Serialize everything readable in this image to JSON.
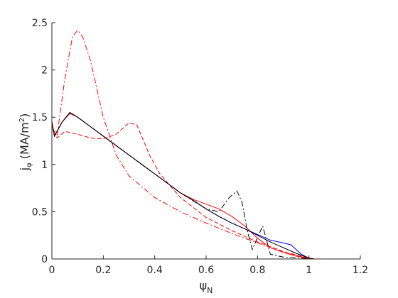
{
  "chart_data": {
    "type": "line",
    "x_label": [
      "ψ",
      "N"
    ],
    "y_label": [
      "j",
      "φ",
      " (MA/m",
      "2",
      ")"
    ],
    "xlim": [
      0,
      1.2
    ],
    "xticks": [
      0,
      0.2,
      0.4,
      0.6,
      0.8,
      1,
      1.2
    ],
    "ylim": [
      0,
      2.5
    ],
    "yticks": [
      0,
      0.5,
      1,
      1.5,
      2,
      2.5
    ],
    "grid": false,
    "series": [
      {
        "color": "#0000ff",
        "dash": "solid",
        "x": [
          0,
          0.01,
          0.04,
          0.07,
          0.1,
          0.15,
          0.2,
          0.25,
          0.3,
          0.35,
          0.4,
          0.45,
          0.5,
          0.55,
          0.6,
          0.65,
          0.7,
          0.75,
          0.8,
          0.85,
          0.9,
          0.93,
          0.97,
          1.0,
          1.02
        ],
        "values": [
          1.45,
          1.3,
          1.45,
          1.55,
          1.5,
          1.4,
          1.3,
          1.2,
          1.1,
          1.0,
          0.9,
          0.8,
          0.7,
          0.62,
          0.53,
          0.45,
          0.38,
          0.32,
          0.26,
          0.2,
          0.17,
          0.15,
          0.05,
          0.01,
          0
        ]
      },
      {
        "color": "#ff0000",
        "dash": "solid",
        "x": [
          0,
          0.01,
          0.04,
          0.07,
          0.1,
          0.15,
          0.2,
          0.25,
          0.3,
          0.35,
          0.4,
          0.45,
          0.5,
          0.55,
          0.6,
          0.65,
          0.7,
          0.75,
          0.8,
          0.85,
          0.9,
          0.95,
          1.0,
          1.02
        ],
        "values": [
          1.44,
          1.3,
          1.45,
          1.54,
          1.5,
          1.4,
          1.3,
          1.2,
          1.1,
          1.0,
          0.9,
          0.8,
          0.7,
          0.63,
          0.58,
          0.53,
          0.45,
          0.35,
          0.22,
          0.12,
          0.07,
          0.03,
          0.005,
          0
        ]
      },
      {
        "color": "#ff0000",
        "dash": "dashed",
        "x": [
          0,
          0.02,
          0.05,
          0.1,
          0.15,
          0.2,
          0.25,
          0.3,
          0.33,
          0.38,
          0.42,
          0.5,
          0.6,
          0.7,
          0.8,
          0.9,
          1.0,
          1.02
        ],
        "values": [
          1.42,
          1.28,
          1.35,
          1.32,
          1.28,
          1.27,
          1.32,
          1.44,
          1.42,
          1.1,
          0.9,
          0.65,
          0.44,
          0.3,
          0.18,
          0.08,
          0.01,
          0
        ]
      },
      {
        "color": "#ff0000",
        "dash": "dashdot",
        "x": [
          0,
          0.02,
          0.05,
          0.08,
          0.1,
          0.12,
          0.15,
          0.2,
          0.25,
          0.3,
          0.4,
          0.5,
          0.6,
          0.7,
          0.8,
          0.9,
          1.0,
          1.02
        ],
        "values": [
          1.4,
          1.3,
          1.9,
          2.35,
          2.42,
          2.35,
          2.1,
          1.5,
          1.1,
          0.88,
          0.65,
          0.5,
          0.38,
          0.27,
          0.17,
          0.07,
          0.005,
          0
        ]
      },
      {
        "color": "#000000",
        "dash": "dashdot",
        "x": [
          0,
          0.01,
          0.04,
          0.07,
          0.1,
          0.15,
          0.2,
          0.3,
          0.4,
          0.5,
          0.6,
          0.65,
          0.69,
          0.72,
          0.74,
          0.76,
          0.78,
          0.82,
          0.85,
          0.9,
          1.0,
          1.02
        ],
        "values": [
          1.45,
          1.3,
          1.45,
          1.55,
          1.5,
          1.4,
          1.3,
          1.1,
          0.9,
          0.7,
          0.53,
          0.5,
          0.65,
          0.72,
          0.6,
          0.3,
          0.1,
          0.35,
          0.05,
          0.02,
          0.005,
          0
        ]
      },
      {
        "color": "#000000",
        "dash": "solid",
        "x": [
          0,
          0.01,
          0.04,
          0.07,
          0.1,
          0.15,
          0.2,
          0.25,
          0.3,
          0.35,
          0.4,
          0.45,
          0.5,
          0.55,
          0.6,
          0.65,
          0.7,
          0.75,
          0.8,
          0.85,
          0.9,
          0.95,
          1.0,
          1.02
        ],
        "values": [
          1.45,
          1.3,
          1.45,
          1.55,
          1.5,
          1.4,
          1.3,
          1.2,
          1.1,
          1.0,
          0.9,
          0.8,
          0.7,
          0.62,
          0.53,
          0.45,
          0.38,
          0.32,
          0.25,
          0.18,
          0.12,
          0.06,
          0.01,
          0
        ]
      }
    ]
  }
}
